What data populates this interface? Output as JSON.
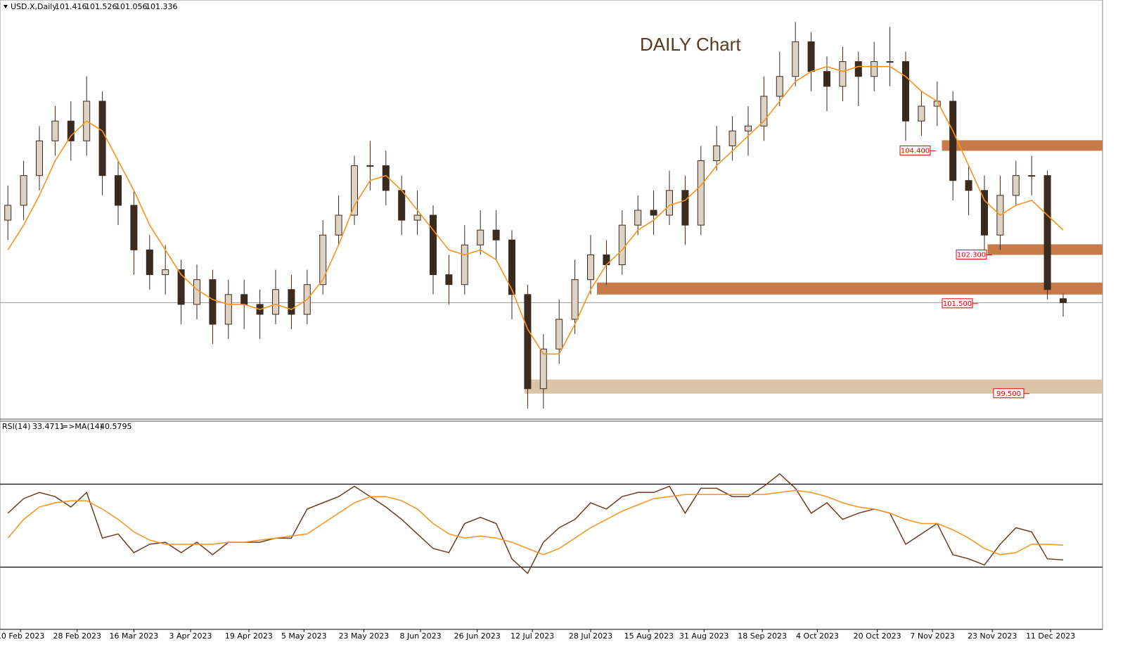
{
  "chart_data": [
    {
      "type": "candlestick",
      "title": "DAILY Chart",
      "symbol": "USD.X,Daily",
      "xlim": [
        -0.5,
        69.5
      ],
      "ylim": [
        99.0,
        107.4
      ],
      "bull_color": "#ddd3c4",
      "bear_color": "#3b2a1e",
      "candles": {
        "open": [
          103.0,
          103.3,
          103.9,
          104.6,
          105.0,
          104.6,
          105.4,
          103.9,
          103.3,
          102.4,
          101.9,
          102.0,
          101.3,
          101.8,
          100.9,
          101.5,
          101.3,
          101.1,
          101.6,
          101.1,
          101.7,
          102.7,
          103.1,
          104.1,
          104.1,
          103.6,
          103.0,
          103.1,
          101.9,
          101.7,
          102.5,
          102.8,
          102.6,
          101.5,
          99.6,
          100.4,
          101.0,
          101.8,
          102.3,
          102.1,
          102.9,
          103.2,
          103.1,
          103.6,
          102.9,
          104.2,
          104.5,
          104.8,
          104.9,
          105.5,
          105.9,
          106.6,
          106.0,
          105.7,
          106.2,
          105.9,
          106.2,
          106.2,
          105.0,
          105.3,
          105.4,
          103.8,
          103.6,
          102.7,
          103.5,
          103.9,
          103.9,
          101.416
        ],
        "high": [
          103.7,
          104.2,
          104.9,
          105.3,
          105.4,
          105.9,
          105.6,
          104.2,
          103.6,
          102.7,
          102.5,
          102.2,
          102.1,
          102.0,
          101.8,
          101.8,
          101.6,
          102.0,
          101.9,
          102.0,
          103.0,
          103.5,
          104.3,
          104.6,
          104.4,
          103.9,
          103.6,
          103.3,
          102.3,
          102.9,
          103.2,
          103.2,
          102.8,
          101.7,
          100.7,
          101.4,
          102.2,
          102.7,
          102.6,
          103.2,
          103.5,
          103.6,
          104.0,
          103.9,
          104.5,
          104.9,
          105.1,
          105.3,
          105.9,
          106.4,
          107.0,
          106.8,
          106.3,
          106.5,
          106.4,
          106.6,
          106.9,
          106.4,
          105.6,
          105.8,
          105.6,
          104.1,
          103.9,
          103.9,
          104.2,
          104.3,
          104.0,
          101.526
        ],
        "low": [
          102.6,
          103.0,
          103.6,
          104.3,
          104.2,
          104.3,
          103.5,
          102.9,
          101.9,
          101.6,
          101.5,
          100.9,
          101.0,
          100.5,
          100.6,
          100.8,
          100.6,
          100.9,
          100.8,
          100.9,
          101.5,
          102.5,
          102.9,
          103.6,
          103.3,
          102.7,
          102.7,
          101.5,
          101.3,
          101.5,
          102.3,
          102.2,
          101.0,
          99.2,
          99.2,
          100.1,
          100.7,
          101.5,
          101.7,
          101.9,
          102.7,
          102.7,
          102.9,
          102.5,
          102.7,
          104.0,
          104.2,
          104.3,
          104.6,
          105.3,
          105.7,
          105.6,
          105.2,
          105.4,
          105.3,
          105.6,
          105.7,
          104.6,
          104.7,
          104.9,
          103.4,
          103.1,
          102.3,
          102.4,
          103.3,
          103.5,
          101.4,
          101.056
        ],
        "close": [
          103.3,
          103.9,
          104.6,
          105.0,
          104.6,
          105.4,
          103.9,
          103.3,
          102.4,
          101.9,
          102.0,
          101.3,
          101.8,
          100.9,
          101.5,
          101.3,
          101.1,
          101.6,
          101.1,
          101.7,
          102.7,
          103.1,
          104.1,
          104.1,
          103.6,
          103.0,
          103.1,
          101.9,
          101.7,
          102.5,
          102.8,
          102.6,
          101.5,
          99.6,
          100.4,
          101.0,
          101.8,
          102.3,
          102.1,
          102.9,
          103.2,
          103.1,
          103.6,
          102.9,
          104.2,
          104.5,
          104.8,
          104.9,
          105.5,
          105.9,
          106.6,
          106.0,
          105.7,
          106.2,
          105.9,
          106.2,
          106.2,
          105.0,
          105.3,
          105.4,
          103.8,
          103.6,
          102.7,
          103.5,
          103.9,
          103.9,
          101.6,
          101.336
        ]
      },
      "series": [
        {
          "color": "#f7931e",
          "values": [
            102.4,
            102.9,
            103.5,
            104.2,
            104.7,
            105.0,
            104.8,
            104.2,
            103.6,
            102.9,
            102.4,
            101.9,
            101.6,
            101.4,
            101.3,
            101.3,
            101.2,
            101.3,
            101.2,
            101.4,
            101.8,
            102.5,
            103.3,
            103.8,
            103.9,
            103.6,
            103.2,
            102.8,
            102.4,
            102.3,
            102.4,
            102.2,
            101.6,
            100.8,
            100.3,
            100.3,
            100.9,
            101.6,
            102.1,
            102.4,
            102.8,
            103.0,
            103.3,
            103.4,
            103.7,
            104.1,
            104.4,
            104.7,
            105.0,
            105.4,
            105.8,
            106.0,
            106.1,
            106.0,
            106.1,
            106.1,
            106.1,
            105.9,
            105.6,
            105.4,
            104.8,
            104.1,
            103.4,
            103.1,
            103.3,
            103.4,
            103.1,
            102.8
          ]
        }
      ],
      "levels": [
        {
          "value": 104.4,
          "label": "104.400",
          "color": "#c77b48"
        },
        {
          "value": 102.3,
          "label": "102.300",
          "color": "#c77b48"
        },
        {
          "value": 101.5,
          "label": "101.500",
          "color": "#c77b48"
        },
        {
          "value": 99.5,
          "label": "99.500",
          "color": "#dcc4a8"
        }
      ]
    },
    {
      "type": "line",
      "xlim": [
        -0.5,
        69.5
      ],
      "ylim": [
        0,
        100
      ],
      "levels": [
        30,
        70
      ],
      "xticks": [
        {
          "value": 0.8,
          "label": "10 Feb 2023"
        },
        {
          "value": 4.4,
          "label": "28 Feb 2023"
        },
        {
          "value": 8.0,
          "label": "16 Mar 2023"
        },
        {
          "value": 11.6,
          "label": "3 Apr 2023"
        },
        {
          "value": 15.3,
          "label": "19 Apr 2023"
        },
        {
          "value": 18.8,
          "label": "5 May 2023"
        },
        {
          "value": 22.6,
          "label": "23 May 2023"
        },
        {
          "value": 26.2,
          "label": "8 Jun 2023"
        },
        {
          "value": 29.8,
          "label": "26 Jun 2023"
        },
        {
          "value": 33.3,
          "label": "12 Jul 2023"
        },
        {
          "value": 37.0,
          "label": "28 Jul 2023"
        },
        {
          "value": 40.7,
          "label": "15 Aug 2023"
        },
        {
          "value": 44.2,
          "label": "31 Aug 2023"
        },
        {
          "value": 47.9,
          "label": "18 Sep 2023"
        },
        {
          "value": 51.4,
          "label": "4 Oct 2023"
        },
        {
          "value": 55.2,
          "label": "20 Oct 2023"
        },
        {
          "value": 58.7,
          "label": "7 Nov 2023"
        },
        {
          "value": 62.5,
          "label": "23 Nov 2023"
        },
        {
          "value": 66.2,
          "label": "11 Dec 2023"
        }
      ],
      "series": [
        {
          "name": "RSI(14)",
          "color": "#6b3e22",
          "values": [
            56,
            63,
            66,
            64,
            59,
            66,
            44,
            46,
            37,
            41,
            42,
            37,
            42,
            36,
            42,
            42,
            42,
            44,
            44,
            58,
            61,
            64,
            69,
            64,
            59,
            53,
            46,
            39,
            37,
            51,
            54,
            51,
            34,
            27,
            42,
            49,
            53,
            61,
            58,
            64,
            66,
            66,
            69,
            56,
            68,
            68,
            64,
            64,
            69,
            75,
            68,
            56,
            61,
            53,
            56,
            58,
            56,
            41,
            46,
            51,
            36,
            34,
            31,
            41,
            49,
            47,
            34,
            33.4711
          ]
        },
        {
          "name": "=>MA(14)",
          "color": "#f7931e",
          "values": [
            44,
            53,
            59,
            61,
            62,
            62,
            58,
            53,
            47,
            43,
            41,
            41,
            41,
            41,
            42,
            42,
            43,
            44,
            45,
            46,
            51,
            56,
            61,
            64,
            64,
            62,
            58,
            51,
            46,
            44,
            45,
            44,
            42,
            39,
            36,
            39,
            44,
            49,
            53,
            57,
            60,
            63,
            64,
            65,
            65,
            65,
            65,
            65,
            65,
            66,
            67,
            66,
            64,
            61,
            59,
            58,
            56,
            53,
            51,
            51,
            48,
            44,
            39,
            36,
            37,
            41,
            41,
            40.5795
          ]
        }
      ]
    }
  ]
}
